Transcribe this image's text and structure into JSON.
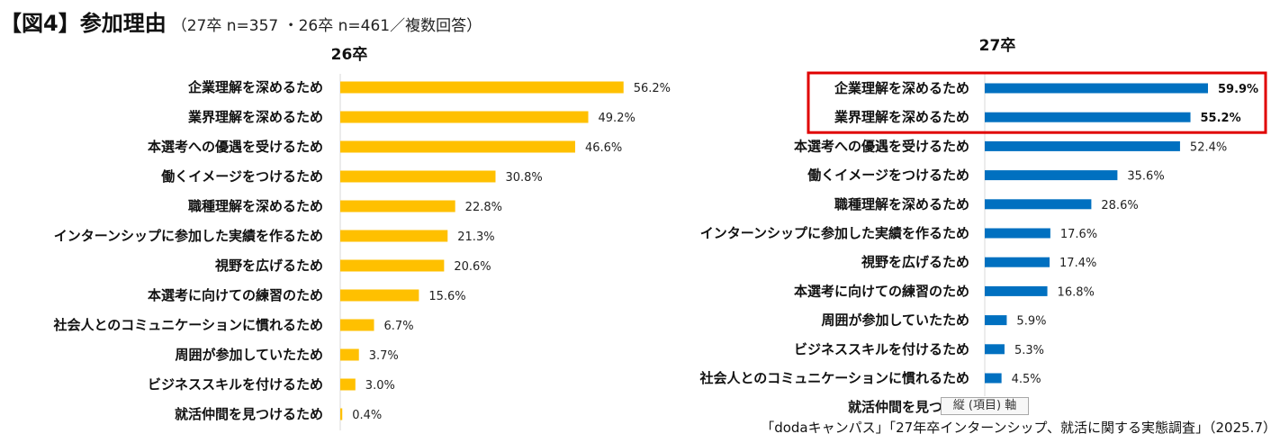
{
  "header": {
    "title": "【図4】参加理由",
    "subtitle": "（27卒 n=357 ・26卒 n=461／複数回答）"
  },
  "tooltip": "縦 (項目) 軸",
  "source": "「dodaキャンパス」「27年卒インターンシップ、就活に関する実態調査」（2025.7）",
  "colors": {
    "chart26": "#FFC000",
    "chart27": "#0070C0",
    "highlight": "#E00000"
  },
  "chart_data": [
    {
      "type": "bar",
      "orientation": "horizontal",
      "title": "26卒",
      "categories": [
        "企業理解を深めるため",
        "業界理解を深めるため",
        "本選考への優遇を受けるため",
        "働くイメージをつけるため",
        "職種理解を深めるため",
        "インターンシップに参加した実績を作るため",
        "視野を広げるため",
        "本選考に向けての練習のため",
        "社会人とのコミュニケーションに慣れるため",
        "周囲が参加していたため",
        "ビジネススキルを付けるため",
        "就活仲間を見つけるため"
      ],
      "values": [
        56.2,
        49.2,
        46.6,
        30.8,
        22.8,
        21.3,
        20.6,
        15.6,
        6.7,
        3.7,
        3.0,
        0.4
      ],
      "labels": [
        "56.2%",
        "49.2%",
        "46.6%",
        "30.8%",
        "22.8%",
        "21.3%",
        "20.6%",
        "15.6%",
        "6.7%",
        "3.7%",
        "3.0%",
        "0.4%"
      ],
      "unit": "%",
      "grid": false,
      "legend": "none",
      "bar_color": "#FFC000"
    },
    {
      "type": "bar",
      "orientation": "horizontal",
      "title": "27卒",
      "categories": [
        "企業理解を深めるため",
        "業界理解を深めるため",
        "本選考への優遇を受けるため",
        "働くイメージをつけるため",
        "職種理解を深めるため",
        "インターンシップに参加した実績を作るため",
        "視野を広げるため",
        "本選考に向けての練習のため",
        "周囲が参加していたため",
        "ビジネススキルを付けるため",
        "社会人とのコミュニケーションに慣れるため",
        "就活仲間を見つける"
      ],
      "values": [
        59.9,
        55.2,
        52.4,
        35.6,
        28.6,
        17.6,
        17.4,
        16.8,
        5.9,
        5.3,
        4.5,
        null
      ],
      "labels": [
        "59.9%",
        "55.2%",
        "52.4%",
        "35.6%",
        "28.6%",
        "17.6%",
        "17.4%",
        "16.8%",
        "5.9%",
        "5.3%",
        "4.5%",
        ""
      ],
      "unit": "%",
      "grid": false,
      "legend": "none",
      "bar_color": "#0070C0",
      "highlighted": [
        "企業理解を深めるため",
        "業界理解を深めるため"
      ]
    }
  ]
}
